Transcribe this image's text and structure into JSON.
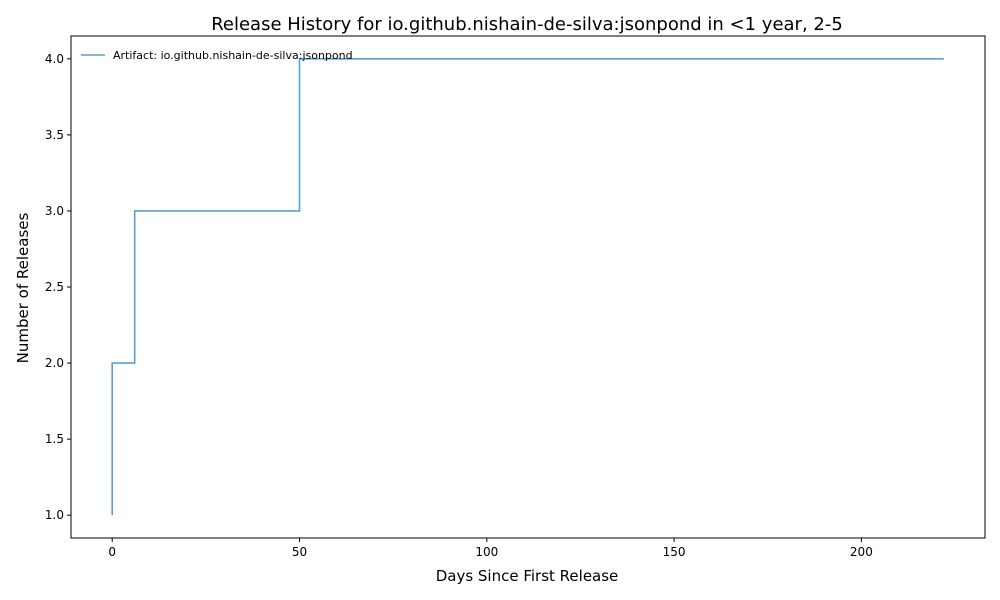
{
  "chart_data": {
    "type": "line",
    "step": "post",
    "title": "Release History for io.github.nishain-de-silva:jsonpond in <1 year, 2-5",
    "xlabel": "Days Since First Release",
    "ylabel": "Number of Releases",
    "xlim": [
      -11,
      233
    ],
    "ylim": [
      0.85,
      4.15
    ],
    "x_ticks": [
      0,
      50,
      100,
      150,
      200
    ],
    "x_tick_labels": [
      "0",
      "50",
      "100",
      "150",
      "200"
    ],
    "y_ticks": [
      1.0,
      1.5,
      2.0,
      2.5,
      3.0,
      3.5,
      4.0
    ],
    "y_tick_labels": [
      "1.0",
      "1.5",
      "2.0",
      "2.5",
      "3.0",
      "3.5",
      "4.0"
    ],
    "grid": false,
    "legend_position": "top-left",
    "series": [
      {
        "name": "Artifact: io.github.nishain-de-silva:jsonpond",
        "color": "#5b9ec9",
        "x": [
          0,
          0,
          6,
          50,
          222
        ],
        "y": [
          1,
          2,
          3,
          4,
          4
        ]
      }
    ]
  }
}
